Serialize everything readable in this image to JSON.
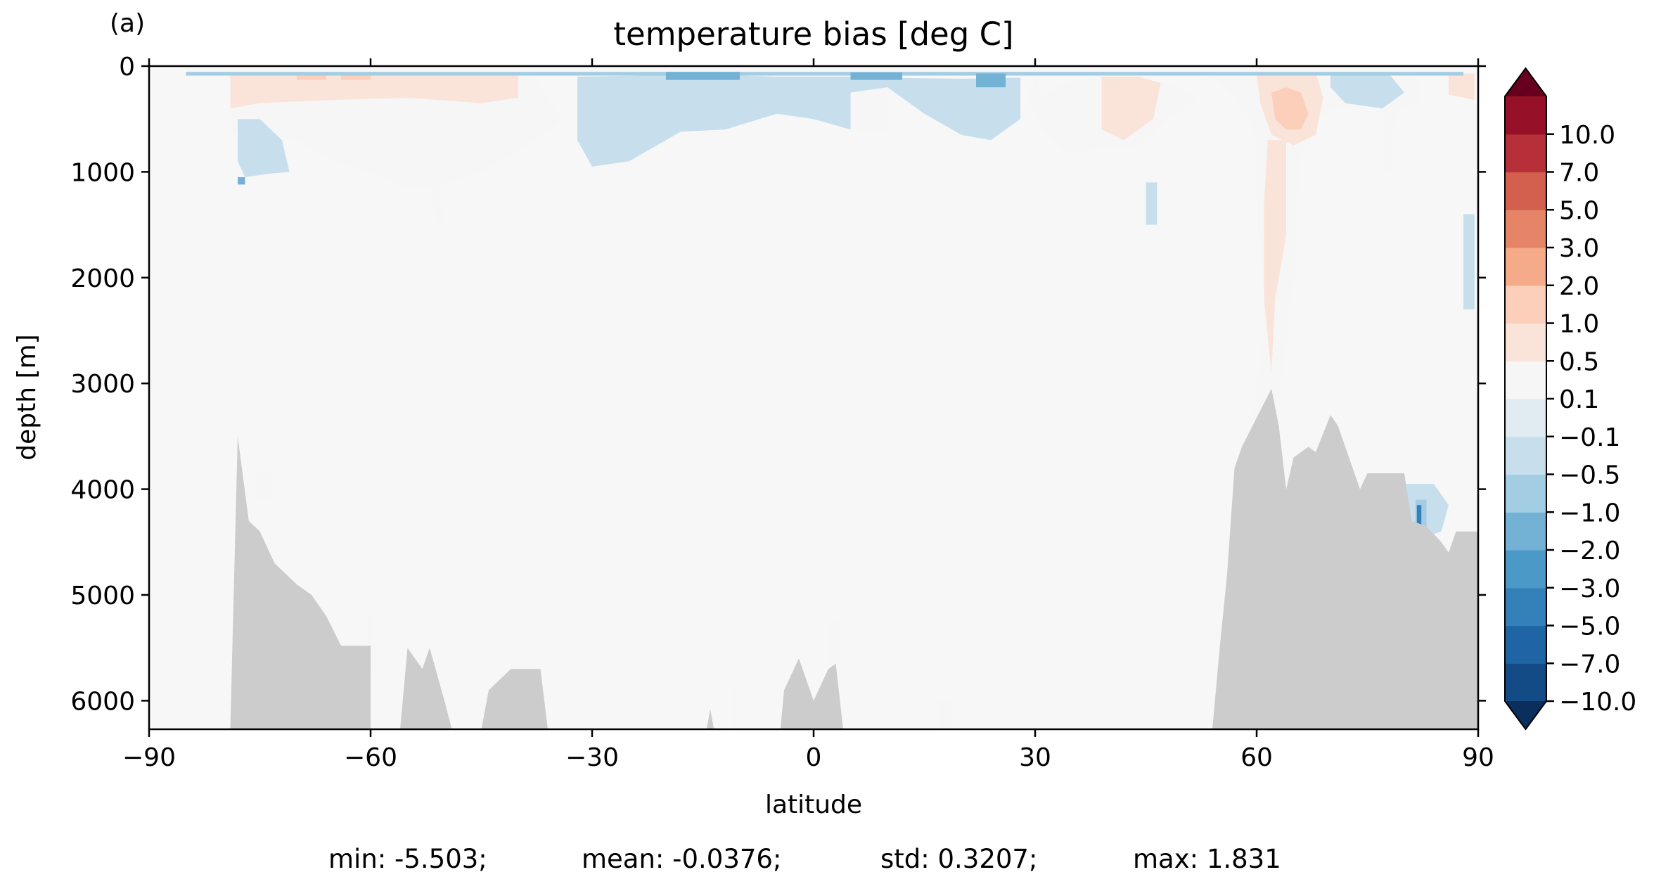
{
  "panel_label": "(a)",
  "chart_data": {
    "type": "heatmap",
    "title": "temperature bias [deg C]",
    "xlabel": "latitude",
    "ylabel": "depth [m]",
    "xlim": [
      -90,
      90
    ],
    "ylim": [
      6270,
      0
    ],
    "y_inverted": true,
    "x_ticks": [
      -90,
      -60,
      -30,
      0,
      30,
      60,
      90
    ],
    "x_tick_labels": [
      "−90",
      "−60",
      "−30",
      "0",
      "30",
      "60",
      "90"
    ],
    "y_ticks": [
      0,
      1000,
      2000,
      3000,
      4000,
      5000,
      6000
    ],
    "y_tick_labels": [
      "0",
      "1000",
      "2000",
      "3000",
      "4000",
      "5000",
      "6000"
    ],
    "grid": false,
    "colormap": "RdBu_r",
    "land_color": "#cccccc",
    "colorbar": {
      "extend": "both",
      "levels": [
        -10,
        -7,
        -5,
        -3,
        -2,
        -1,
        -0.5,
        -0.1,
        0.1,
        0.5,
        1,
        2,
        3,
        5,
        7,
        10
      ],
      "tick_labels": [
        "−10.0",
        "−7.0",
        "−5.0",
        "−3.0",
        "−2.0",
        "−1.0",
        "−0.5",
        "−0.1",
        "0.1",
        "0.5",
        "1.0",
        "2.0",
        "3.0",
        "5.0",
        "7.0",
        "10.0"
      ],
      "colors": [
        "#134b87",
        "#1f65a6",
        "#3480b9",
        "#4b99c6",
        "#74b2d5",
        "#a2cde3",
        "#c7dfed",
        "#e0ebf2",
        "#f6f6f6",
        "#fae4d9",
        "#fbcfba",
        "#f5aa89",
        "#e68467",
        "#d35f4f",
        "#b72f38",
        "#961127"
      ],
      "under_color": "#0a2f5c",
      "over_color": "#67001f"
    },
    "bathymetry": [
      [
        -90,
        6270
      ],
      [
        -79,
        6270
      ],
      [
        -78,
        3500
      ],
      [
        -76.5,
        4300
      ],
      [
        -75,
        4400
      ],
      [
        -73,
        4700
      ],
      [
        -70,
        4900
      ],
      [
        -68,
        5000
      ],
      [
        -66,
        5200
      ],
      [
        -64,
        5480
      ],
      [
        -60,
        5480
      ],
      [
        -60,
        6270
      ],
      [
        -56,
        6270
      ],
      [
        -55,
        5500
      ],
      [
        -53,
        5700
      ],
      [
        -52,
        5500
      ],
      [
        -50,
        6000
      ],
      [
        -49,
        6270
      ],
      [
        -45,
        6270
      ],
      [
        -44,
        5900
      ],
      [
        -41,
        5700
      ],
      [
        -37,
        5700
      ],
      [
        -36,
        6270
      ],
      [
        -14.5,
        6270
      ],
      [
        -14,
        6080
      ],
      [
        -13.5,
        6270
      ],
      [
        -4.5,
        6270
      ],
      [
        -4,
        5900
      ],
      [
        -2,
        5600
      ],
      [
        0,
        6000
      ],
      [
        2,
        5700
      ],
      [
        3,
        5650
      ],
      [
        4,
        6270
      ],
      [
        54,
        6270
      ],
      [
        55,
        5500
      ],
      [
        56,
        4800
      ],
      [
        57,
        3800
      ],
      [
        58,
        3600
      ],
      [
        62,
        3050
      ],
      [
        63,
        3400
      ],
      [
        64,
        4000
      ],
      [
        65,
        3700
      ],
      [
        67,
        3600
      ],
      [
        68,
        3650
      ],
      [
        70,
        3300
      ],
      [
        71,
        3400
      ],
      [
        73,
        3800
      ],
      [
        74,
        4000
      ],
      [
        75,
        3850
      ],
      [
        80,
        3850
      ],
      [
        81,
        4300
      ],
      [
        83,
        4350
      ],
      [
        85,
        4500
      ],
      [
        86,
        4600
      ],
      [
        87,
        4400
      ],
      [
        90,
        4400
      ],
      [
        90,
        6270
      ]
    ],
    "bias_regions": [
      {
        "level": 0.3,
        "outline": [
          [
            -79,
            60
          ],
          [
            -70,
            60
          ],
          [
            -60,
            60
          ],
          [
            -50,
            60
          ],
          [
            -40,
            70
          ],
          [
            -38,
            90
          ],
          [
            -36,
            300
          ],
          [
            -34,
            500
          ],
          [
            -36,
            620
          ],
          [
            -40,
            800
          ],
          [
            -45,
            1000
          ],
          [
            -50,
            1120
          ],
          [
            -55,
            1150
          ],
          [
            -60,
            1000
          ],
          [
            -65,
            900
          ],
          [
            -70,
            700
          ],
          [
            -75,
            620
          ],
          [
            -79,
            620
          ]
        ]
      },
      {
        "level": 0.3,
        "outline": [
          [
            -52,
            1000
          ],
          [
            -51,
            1000
          ],
          [
            -50,
            1500
          ],
          [
            -51,
            1500
          ]
        ]
      },
      {
        "level": 0.75,
        "outline": [
          [
            -79,
            60
          ],
          [
            -65,
            60
          ],
          [
            -55,
            70
          ],
          [
            -45,
            70
          ],
          [
            -40,
            80
          ],
          [
            -40,
            300
          ],
          [
            -45,
            350
          ],
          [
            -55,
            300
          ],
          [
            -65,
            320
          ],
          [
            -75,
            350
          ],
          [
            -79,
            400
          ]
        ]
      },
      {
        "level": 1.5,
        "outline": [
          [
            -70,
            70
          ],
          [
            -66,
            70
          ],
          [
            -66,
            130
          ],
          [
            -70,
            130
          ]
        ]
      },
      {
        "level": 1.5,
        "outline": [
          [
            -64,
            70
          ],
          [
            -60,
            70
          ],
          [
            -60,
            130
          ],
          [
            -64,
            130
          ]
        ]
      },
      {
        "level": 0.3,
        "outline": [
          [
            -28,
            90
          ],
          [
            -23,
            90
          ],
          [
            -22,
            400
          ],
          [
            -25,
            600
          ],
          [
            -28,
            560
          ]
        ]
      },
      {
        "level": 0.3,
        "outline": [
          [
            5,
            100
          ],
          [
            10,
            100
          ],
          [
            10,
            620
          ],
          [
            5,
            620
          ]
        ]
      },
      {
        "level": 0.3,
        "outline": [
          [
            30,
            60
          ],
          [
            40,
            60
          ],
          [
            45,
            60
          ],
          [
            50,
            65
          ],
          [
            54,
            100
          ],
          [
            57,
            300
          ],
          [
            59,
            500
          ],
          [
            60,
            700
          ],
          [
            60,
            1400
          ],
          [
            61,
            2100
          ],
          [
            60.5,
            2800
          ],
          [
            59.5,
            3300
          ],
          [
            59,
            3500
          ],
          [
            60,
            3550
          ],
          [
            62,
            3450
          ],
          [
            63,
            3200
          ],
          [
            64,
            2600
          ],
          [
            65,
            2000
          ],
          [
            65.5,
            1400
          ],
          [
            66,
            800
          ],
          [
            68,
            500
          ],
          [
            70,
            420
          ],
          [
            74,
            350
          ],
          [
            77,
            300
          ],
          [
            77,
            1000
          ],
          [
            78,
            1000
          ],
          [
            79,
            400
          ],
          [
            82,
            350
          ],
          [
            82,
            70
          ],
          [
            76,
            60
          ],
          [
            70,
            60
          ],
          [
            60,
            60
          ],
          [
            50,
            60
          ],
          [
            40,
            60
          ],
          [
            30,
            60
          ],
          [
            29,
            300
          ],
          [
            31,
            600
          ],
          [
            34,
            800
          ],
          [
            37,
            800
          ],
          [
            40,
            750
          ],
          [
            44,
            750
          ],
          [
            48,
            500
          ],
          [
            52,
            300
          ],
          [
            48,
            150
          ],
          [
            40,
            120
          ],
          [
            34,
            150
          ],
          [
            31,
            300
          ]
        ]
      },
      {
        "level": 0.75,
        "outline": [
          [
            61.5,
            700
          ],
          [
            64,
            700
          ],
          [
            64,
            1600
          ],
          [
            62.5,
            2200
          ],
          [
            62,
            2900
          ],
          [
            61,
            2200
          ],
          [
            61,
            1300
          ]
        ]
      },
      {
        "level": 0.75,
        "outline": [
          [
            39,
            100
          ],
          [
            44,
            100
          ],
          [
            47,
            160
          ],
          [
            46,
            500
          ],
          [
            42,
            700
          ],
          [
            39,
            600
          ]
        ]
      },
      {
        "level": 0.75,
        "outline": [
          [
            60,
            80
          ],
          [
            65,
            60
          ],
          [
            68,
            60
          ],
          [
            69,
            300
          ],
          [
            68,
            650
          ],
          [
            65,
            750
          ],
          [
            62,
            650
          ],
          [
            60.5,
            350
          ]
        ]
      },
      {
        "level": 1.5,
        "outline": [
          [
            62,
            250
          ],
          [
            64,
            200
          ],
          [
            66,
            250
          ],
          [
            67,
            450
          ],
          [
            66,
            600
          ],
          [
            64,
            600
          ],
          [
            62.5,
            500
          ]
        ]
      },
      {
        "level": 0.75,
        "outline": [
          [
            86,
            70
          ],
          [
            89.5,
            70
          ],
          [
            89.5,
            320
          ],
          [
            86,
            270
          ]
        ]
      },
      {
        "level": 0.3,
        "outline": [
          [
            -75.5,
            3850
          ],
          [
            -73.5,
            3850
          ],
          [
            -73.5,
            4100
          ],
          [
            -75.5,
            4100
          ]
        ]
      },
      {
        "level": 0.3,
        "outline": [
          [
            -60.5,
            5200
          ],
          [
            -59.8,
            5200
          ],
          [
            -59.8,
            5700
          ],
          [
            -60.5,
            5700
          ]
        ]
      },
      {
        "level": 0.3,
        "outline": [
          [
            2,
            5250
          ],
          [
            3.2,
            5250
          ],
          [
            3.2,
            5650
          ],
          [
            2,
            5650
          ]
        ]
      },
      {
        "level": 0.3,
        "outline": [
          [
            17,
            6000
          ],
          [
            19,
            6000
          ],
          [
            19,
            6270
          ],
          [
            17,
            6270
          ]
        ]
      },
      {
        "level": 0.3,
        "outline": [
          [
            -11,
            5880
          ],
          [
            -10.5,
            5880
          ],
          [
            -10.5,
            6270
          ],
          [
            -11,
            6270
          ]
        ]
      },
      {
        "level": -0.3,
        "outline": [
          [
            -78,
            500
          ],
          [
            -75,
            500
          ],
          [
            -72,
            700
          ],
          [
            -71,
            1000
          ],
          [
            -74,
            1020
          ],
          [
            -77,
            1050
          ],
          [
            -78,
            900
          ]
        ]
      },
      {
        "level": -0.3,
        "outline": [
          [
            -32,
            100
          ],
          [
            -15,
            80
          ],
          [
            -5,
            100
          ],
          [
            0,
            150
          ],
          [
            5,
            200
          ],
          [
            5,
            600
          ],
          [
            0,
            500
          ],
          [
            -5,
            450
          ],
          [
            -12,
            600
          ],
          [
            -18,
            620
          ],
          [
            -25,
            900
          ],
          [
            -30,
            950
          ],
          [
            -32,
            700
          ]
        ]
      },
      {
        "level": -0.3,
        "outline": [
          [
            -5,
            100
          ],
          [
            5,
            100
          ],
          [
            10,
            110
          ],
          [
            20,
            120
          ],
          [
            28,
            110
          ],
          [
            28,
            500
          ],
          [
            24,
            700
          ],
          [
            20,
            650
          ],
          [
            15,
            450
          ],
          [
            10,
            200
          ],
          [
            0,
            300
          ],
          [
            -5,
            300
          ]
        ]
      },
      {
        "level": -0.3,
        "outline": [
          [
            70,
            80
          ],
          [
            78,
            80
          ],
          [
            80,
            250
          ],
          [
            77,
            400
          ],
          [
            72,
            350
          ],
          [
            70,
            200
          ]
        ]
      },
      {
        "level": -0.3,
        "outline": [
          [
            45,
            1100
          ],
          [
            46.5,
            1100
          ],
          [
            46.5,
            1500
          ],
          [
            45,
            1500
          ]
        ]
      },
      {
        "level": -0.3,
        "outline": [
          [
            88,
            1400
          ],
          [
            89.5,
            1400
          ],
          [
            89.5,
            2300
          ],
          [
            88,
            2300
          ]
        ]
      },
      {
        "level": -0.3,
        "outline": [
          [
            80,
            3950
          ],
          [
            84,
            3950
          ],
          [
            86,
            4150
          ],
          [
            85,
            4400
          ],
          [
            81,
            4500
          ]
        ]
      },
      {
        "level": -0.75,
        "outline": [
          [
            -85,
            55
          ],
          [
            88,
            55
          ],
          [
            88,
            90
          ],
          [
            -85,
            90
          ]
        ]
      },
      {
        "level": -1.5,
        "outline": [
          [
            -20,
            55
          ],
          [
            -10,
            55
          ],
          [
            -10,
            130
          ],
          [
            -20,
            130
          ]
        ]
      },
      {
        "level": -1.5,
        "outline": [
          [
            5,
            60
          ],
          [
            12,
            60
          ],
          [
            12,
            130
          ],
          [
            5,
            130
          ]
        ]
      },
      {
        "level": -1.5,
        "outline": [
          [
            22,
            70
          ],
          [
            26,
            70
          ],
          [
            26,
            200
          ],
          [
            22,
            200
          ]
        ]
      },
      {
        "level": -0.75,
        "outline": [
          [
            81.5,
            4100
          ],
          [
            83,
            4100
          ],
          [
            83,
            4450
          ],
          [
            81.5,
            4450
          ]
        ]
      },
      {
        "level": -4,
        "outline": [
          [
            81.7,
            4150
          ],
          [
            82.3,
            4150
          ],
          [
            82.3,
            4520
          ],
          [
            81.7,
            4520
          ]
        ]
      },
      {
        "level": -1.5,
        "outline": [
          [
            -78,
            1050
          ],
          [
            -77,
            1050
          ],
          [
            -77,
            1120
          ],
          [
            -78,
            1120
          ]
        ]
      }
    ],
    "stats_line": {
      "min_label": "min: -5.503;",
      "mean_label": "mean: -0.0376;",
      "std_label": "std: 0.3207;",
      "max_label": "max: 1.831"
    },
    "stats": {
      "min": -5.503,
      "mean": -0.0376,
      "std": 0.3207,
      "max": 1.831
    }
  }
}
